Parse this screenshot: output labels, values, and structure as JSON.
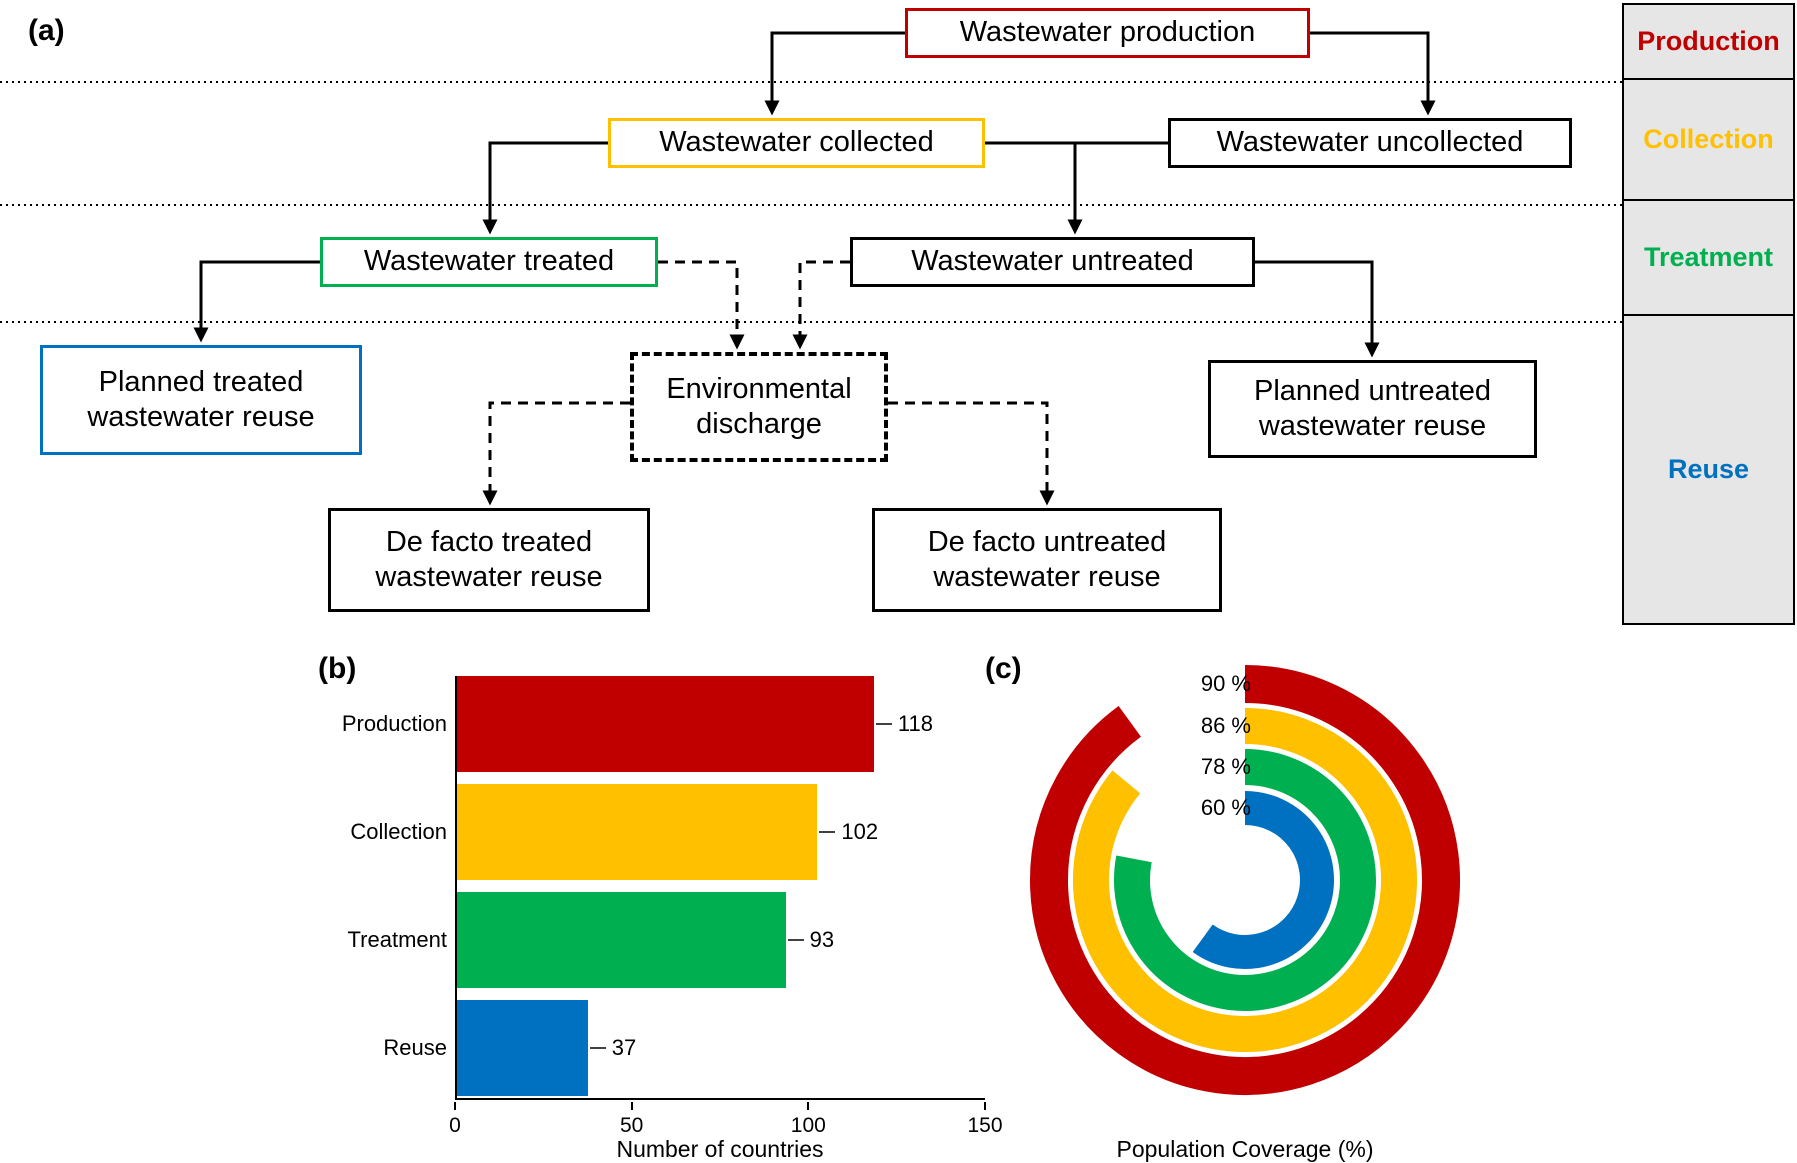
{
  "panels": {
    "a": {
      "label": "(a)"
    },
    "b": {
      "label": "(b)"
    },
    "c": {
      "label": "(c)"
    }
  },
  "flowchart": {
    "nodes": {
      "production": {
        "text": "Wastewater production",
        "border_color": "#C00000"
      },
      "collected": {
        "text": "Wastewater collected",
        "border_color": "#FFC000"
      },
      "uncollected": {
        "text": "Wastewater uncollected",
        "border_color": "#000000"
      },
      "treated": {
        "text": "Wastewater treated",
        "border_color": "#00B050"
      },
      "untreated": {
        "text": "Wastewater untreated",
        "border_color": "#000000"
      },
      "planned_treated_reuse": {
        "text": "Planned treated wastewater reuse",
        "border_color": "#0070C0"
      },
      "environmental_discharge": {
        "text": "Environmental discharge",
        "border_color": "#000000"
      },
      "planned_untreated_reuse": {
        "text": "Planned untreated wastewater reuse",
        "border_color": "#000000"
      },
      "de_facto_treated_reuse": {
        "text": "De facto treated wastewater reuse",
        "border_color": "#000000"
      },
      "de_facto_untreated_reuse": {
        "text": "De facto untreated wastewater reuse",
        "border_color": "#000000"
      }
    },
    "stage_legend": [
      {
        "label": "Production",
        "color": "#C00000"
      },
      {
        "label": "Collection",
        "color": "#FFC000"
      },
      {
        "label": "Treatment",
        "color": "#00B050"
      },
      {
        "label": "Reuse",
        "color": "#0070C0"
      }
    ]
  },
  "chart_data": [
    {
      "type": "bar",
      "orientation": "horizontal",
      "title": "",
      "categories": [
        "Production",
        "Collection",
        "Treatment",
        "Reuse"
      ],
      "values": [
        118,
        102,
        93,
        37
      ],
      "value_labels": [
        "118",
        "102",
        "93",
        "37"
      ],
      "colors": [
        "#C00000",
        "#FFC000",
        "#00B050",
        "#0070C0"
      ],
      "xlabel": "Number of countries",
      "ylabel": "",
      "xlim": [
        0,
        150
      ],
      "xticks": [
        0,
        50,
        100,
        150
      ],
      "grid": false,
      "legend": "none"
    },
    {
      "type": "radial_progress",
      "caption": "Population Coverage (%)",
      "start_angle_deg": -90,
      "direction": "clockwise",
      "rings": [
        {
          "stage": "Production",
          "label": "90 %",
          "value": 90,
          "color": "#C00000"
        },
        {
          "stage": "Collection",
          "label": "86 %",
          "value": 86,
          "color": "#FFC000"
        },
        {
          "stage": "Treatment",
          "label": "78 %",
          "value": 78,
          "color": "#00B050"
        },
        {
          "stage": "Reuse",
          "label": "60 %",
          "value": 60,
          "color": "#0070C0"
        }
      ]
    }
  ]
}
